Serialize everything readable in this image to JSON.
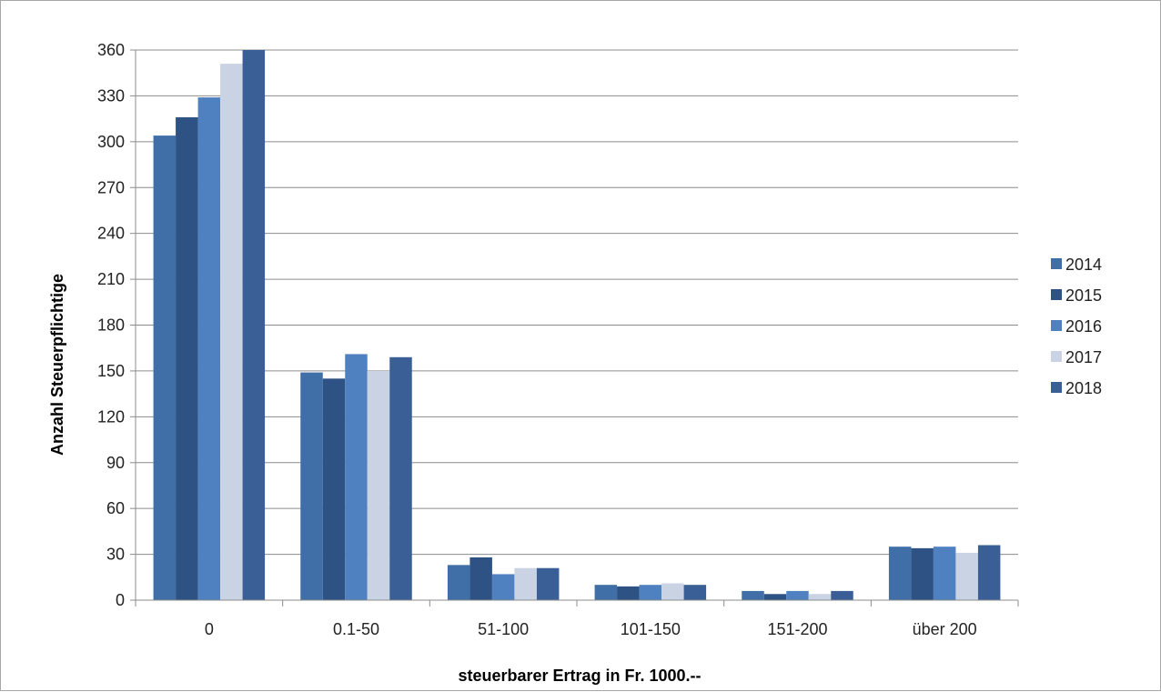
{
  "chart_data": {
    "type": "bar",
    "categories": [
      "0",
      "0.1-50",
      "51-100",
      "101-150",
      "151-200",
      "über 200"
    ],
    "series": [
      {
        "name": "2014",
        "color": "#3f6fa6",
        "values": [
          304,
          149,
          23,
          10,
          6,
          35
        ]
      },
      {
        "name": "2015",
        "color": "#2f5284",
        "values": [
          316,
          145,
          28,
          9,
          4,
          34
        ]
      },
      {
        "name": "2016",
        "color": "#4f81c0",
        "values": [
          329,
          161,
          17,
          10,
          6,
          35
        ]
      },
      {
        "name": "2017",
        "color": "#c9d3e4",
        "values": [
          351,
          150,
          21,
          11,
          4,
          31
        ]
      },
      {
        "name": "2018",
        "color": "#3a5f96",
        "values": [
          360,
          159,
          21,
          10,
          6,
          36
        ]
      }
    ],
    "xlabel": "steuerbarer Ertrag in Fr. 1000.--",
    "ylabel": "Anzahl Steuerpflichtige",
    "ylim": [
      0,
      360
    ],
    "yticks": [
      0,
      30,
      60,
      90,
      120,
      150,
      180,
      210,
      240,
      270,
      300,
      330,
      360
    ],
    "grid": true,
    "legend_position": "right"
  }
}
